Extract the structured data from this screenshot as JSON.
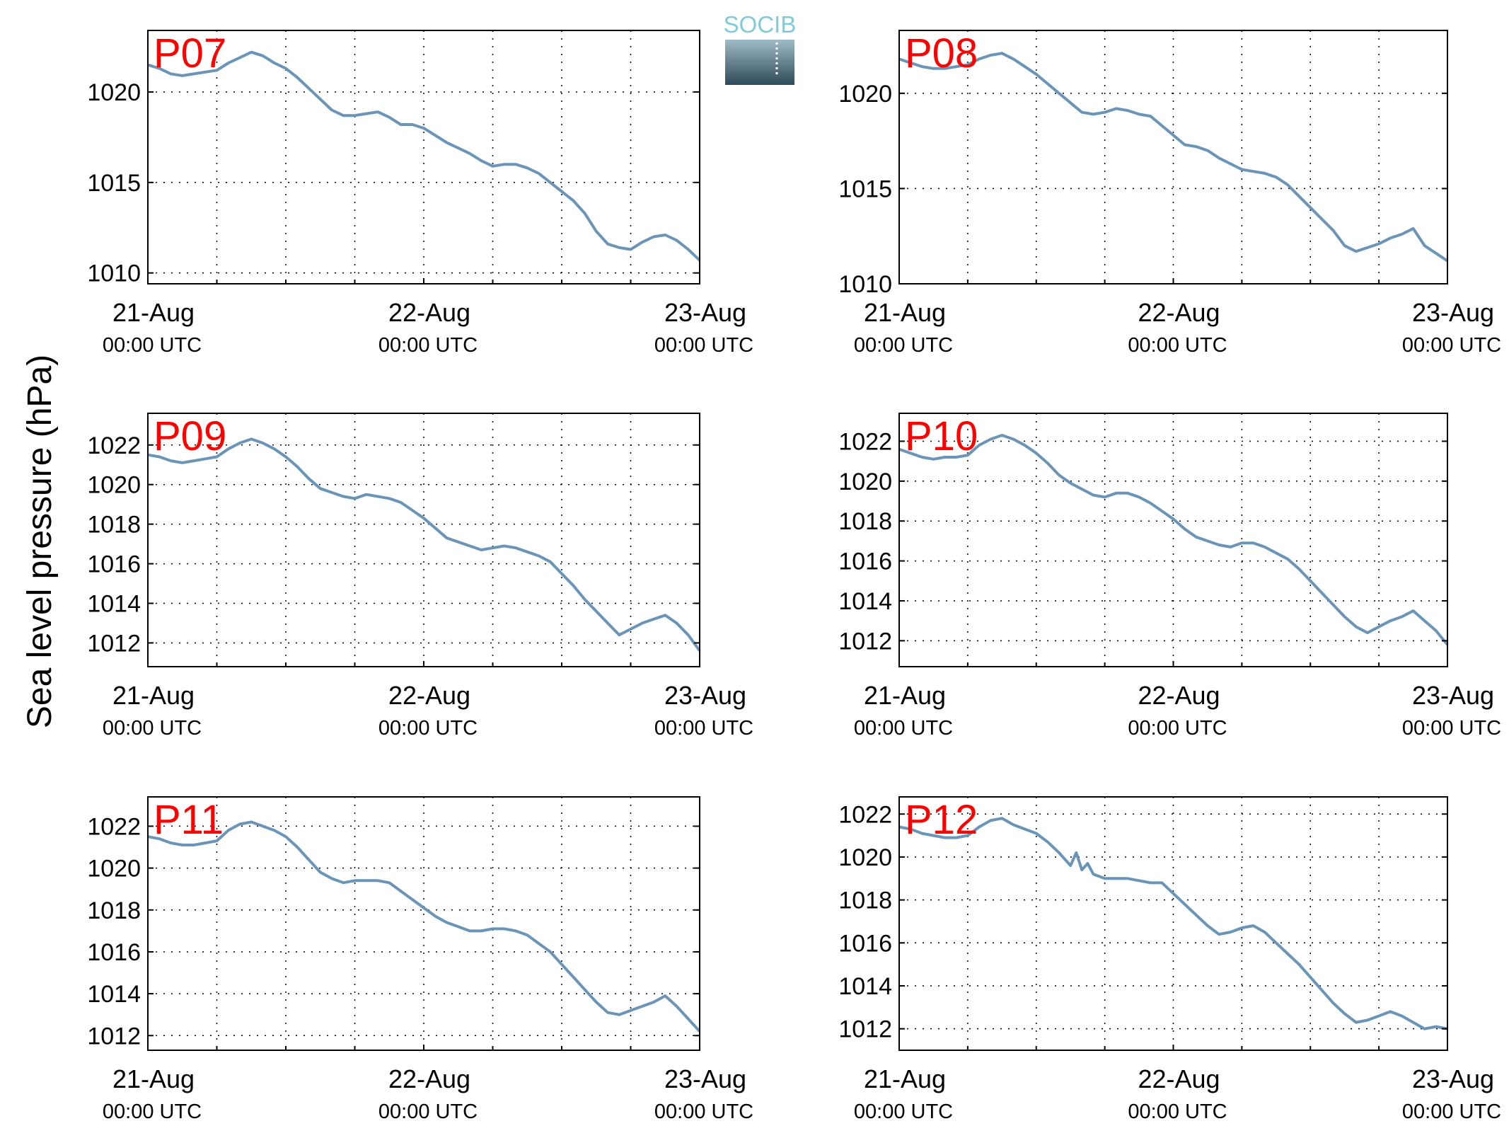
{
  "ylabel": "Sea level pressure (hPa)",
  "logo": {
    "text": "SOCIB"
  },
  "colors": {
    "line": "#6a95b8",
    "panel_label": "#ff0000",
    "logo_text": "#7fcbd9",
    "logo_bg_top": "#7fa2b0",
    "logo_bg_bottom": "#2e4957"
  },
  "chart_data": [
    {
      "type": "line",
      "title": "P07",
      "xlim": [
        0,
        48
      ],
      "xticks": [
        {
          "x": 0,
          "date": "21-Aug",
          "time": "00:00 UTC"
        },
        {
          "x": 24,
          "date": "22-Aug",
          "time": "00:00 UTC"
        },
        {
          "x": 48,
          "date": "23-Aug",
          "time": "00:00 UTC"
        }
      ],
      "xgrid_hours": [
        6,
        12,
        18,
        30,
        36,
        42
      ],
      "ylim": [
        1009.4,
        1023.4
      ],
      "yticks": [
        1010,
        1015,
        1020
      ],
      "series": [
        {
          "x": [
            0,
            1,
            2,
            3,
            4,
            5,
            6,
            7,
            8,
            9,
            10,
            11,
            12,
            13,
            14,
            15,
            16,
            17,
            18,
            19,
            20,
            21,
            22,
            23,
            24,
            25,
            26,
            27,
            28,
            29,
            30,
            31,
            32,
            33,
            34,
            35,
            36,
            37,
            38,
            39,
            40,
            41,
            42,
            43,
            44,
            45,
            46,
            47,
            48
          ],
          "y": [
            1021.5,
            1021.3,
            1021.0,
            1020.9,
            1021.0,
            1021.1,
            1021.2,
            1021.6,
            1021.9,
            1022.2,
            1022.0,
            1021.6,
            1021.3,
            1020.8,
            1020.2,
            1019.6,
            1019.0,
            1018.7,
            1018.7,
            1018.8,
            1018.9,
            1018.6,
            1018.2,
            1018.2,
            1018.0,
            1017.6,
            1017.2,
            1016.9,
            1016.6,
            1016.2,
            1015.9,
            1016.0,
            1016.0,
            1015.8,
            1015.5,
            1015.0,
            1014.5,
            1014.0,
            1013.3,
            1012.3,
            1011.6,
            1011.4,
            1011.3,
            1011.7,
            1012.0,
            1012.1,
            1011.8,
            1011.3,
            1010.7
          ]
        }
      ]
    },
    {
      "type": "line",
      "title": "P08",
      "xlim": [
        0,
        48
      ],
      "xticks": [
        {
          "x": 0,
          "date": "21-Aug",
          "time": "00:00 UTC"
        },
        {
          "x": 24,
          "date": "22-Aug",
          "time": "00:00 UTC"
        },
        {
          "x": 48,
          "date": "23-Aug",
          "time": "00:00 UTC"
        }
      ],
      "xgrid_hours": [
        6,
        12,
        18,
        30,
        36,
        42
      ],
      "ylim": [
        1010,
        1023.3
      ],
      "yticks": [
        1010,
        1015,
        1020
      ],
      "series": [
        {
          "x": [
            0,
            1,
            2,
            3,
            4,
            5,
            6,
            7,
            8,
            9,
            10,
            11,
            12,
            13,
            14,
            15,
            16,
            17,
            18,
            19,
            20,
            21,
            22,
            23,
            24,
            25,
            26,
            27,
            28,
            29,
            30,
            31,
            32,
            33,
            34,
            35,
            36,
            37,
            38,
            39,
            40,
            41,
            42,
            43,
            44,
            45,
            46,
            47,
            48
          ],
          "y": [
            1021.8,
            1021.6,
            1021.4,
            1021.3,
            1021.3,
            1021.4,
            1021.5,
            1021.8,
            1022.0,
            1022.1,
            1021.8,
            1021.4,
            1021.0,
            1020.5,
            1020.0,
            1019.5,
            1019.0,
            1018.9,
            1019.0,
            1019.2,
            1019.1,
            1018.9,
            1018.8,
            1018.3,
            1017.8,
            1017.3,
            1017.2,
            1017.0,
            1016.6,
            1016.3,
            1016.0,
            1015.9,
            1015.8,
            1015.6,
            1015.2,
            1014.6,
            1014.0,
            1013.4,
            1012.8,
            1012.0,
            1011.7,
            1011.9,
            1012.1,
            1012.4,
            1012.6,
            1012.9,
            1012.0,
            1011.6,
            1011.2
          ]
        }
      ]
    },
    {
      "type": "line",
      "title": "P09",
      "xlim": [
        0,
        48
      ],
      "xticks": [
        {
          "x": 0,
          "date": "21-Aug",
          "time": "00:00 UTC"
        },
        {
          "x": 24,
          "date": "22-Aug",
          "time": "00:00 UTC"
        },
        {
          "x": 48,
          "date": "23-Aug",
          "time": "00:00 UTC"
        }
      ],
      "xgrid_hours": [
        6,
        12,
        18,
        30,
        36,
        42
      ],
      "ylim": [
        1010.8,
        1023.6
      ],
      "yticks": [
        1012,
        1014,
        1016,
        1018,
        1020,
        1022
      ],
      "series": [
        {
          "x": [
            0,
            1,
            2,
            3,
            4,
            5,
            6,
            7,
            8,
            9,
            10,
            11,
            12,
            13,
            14,
            15,
            16,
            17,
            18,
            19,
            20,
            21,
            22,
            23,
            24,
            25,
            26,
            27,
            28,
            29,
            30,
            31,
            32,
            33,
            34,
            35,
            36,
            37,
            38,
            39,
            40,
            41,
            42,
            43,
            44,
            45,
            46,
            47,
            48
          ],
          "y": [
            1021.5,
            1021.4,
            1021.2,
            1021.1,
            1021.2,
            1021.3,
            1021.4,
            1021.8,
            1022.1,
            1022.3,
            1022.1,
            1021.8,
            1021.4,
            1020.9,
            1020.3,
            1019.8,
            1019.6,
            1019.4,
            1019.3,
            1019.5,
            1019.4,
            1019.3,
            1019.1,
            1018.7,
            1018.3,
            1017.8,
            1017.3,
            1017.1,
            1016.9,
            1016.7,
            1016.8,
            1016.9,
            1016.8,
            1016.6,
            1016.4,
            1016.1,
            1015.5,
            1014.9,
            1014.2,
            1013.6,
            1013.0,
            1012.4,
            1012.7,
            1013.0,
            1013.2,
            1013.4,
            1013.0,
            1012.4,
            1011.6
          ]
        }
      ]
    },
    {
      "type": "line",
      "title": "P10",
      "xlim": [
        0,
        48
      ],
      "xticks": [
        {
          "x": 0,
          "date": "21-Aug",
          "time": "00:00 UTC"
        },
        {
          "x": 24,
          "date": "22-Aug",
          "time": "00:00 UTC"
        },
        {
          "x": 48,
          "date": "23-Aug",
          "time": "00:00 UTC"
        }
      ],
      "xgrid_hours": [
        6,
        12,
        18,
        30,
        36,
        42
      ],
      "ylim": [
        1010.7,
        1023.4
      ],
      "yticks": [
        1012,
        1014,
        1016,
        1018,
        1020,
        1022
      ],
      "series": [
        {
          "x": [
            0,
            1,
            2,
            3,
            4,
            5,
            6,
            7,
            8,
            9,
            10,
            11,
            12,
            13,
            14,
            15,
            16,
            17,
            18,
            19,
            20,
            21,
            22,
            23,
            24,
            25,
            26,
            27,
            28,
            29,
            30,
            31,
            32,
            33,
            34,
            35,
            36,
            37,
            38,
            39,
            40,
            41,
            42,
            43,
            44,
            45,
            46,
            47,
            48
          ],
          "y": [
            1021.6,
            1021.4,
            1021.2,
            1021.1,
            1021.2,
            1021.2,
            1021.3,
            1021.8,
            1022.1,
            1022.3,
            1022.1,
            1021.8,
            1021.4,
            1020.9,
            1020.3,
            1019.9,
            1019.6,
            1019.3,
            1019.2,
            1019.4,
            1019.4,
            1019.2,
            1018.9,
            1018.5,
            1018.1,
            1017.6,
            1017.2,
            1017.0,
            1016.8,
            1016.7,
            1016.9,
            1016.9,
            1016.7,
            1016.4,
            1016.1,
            1015.6,
            1015.0,
            1014.4,
            1013.8,
            1013.2,
            1012.7,
            1012.4,
            1012.7,
            1013.0,
            1013.2,
            1013.5,
            1013.0,
            1012.5,
            1011.8
          ]
        }
      ]
    },
    {
      "type": "line",
      "title": "P11",
      "xlim": [
        0,
        48
      ],
      "xticks": [
        {
          "x": 0,
          "date": "21-Aug",
          "time": "00:00 UTC"
        },
        {
          "x": 24,
          "date": "22-Aug",
          "time": "00:00 UTC"
        },
        {
          "x": 48,
          "date": "23-Aug",
          "time": "00:00 UTC"
        }
      ],
      "xgrid_hours": [
        6,
        12,
        18,
        30,
        36,
        42
      ],
      "ylim": [
        1011.3,
        1023.4
      ],
      "yticks": [
        1012,
        1014,
        1016,
        1018,
        1020,
        1022
      ],
      "series": [
        {
          "x": [
            0,
            1,
            2,
            3,
            4,
            5,
            6,
            7,
            8,
            9,
            10,
            11,
            12,
            13,
            14,
            15,
            16,
            17,
            18,
            19,
            20,
            21,
            22,
            23,
            24,
            25,
            26,
            27,
            28,
            29,
            30,
            31,
            32,
            33,
            34,
            35,
            36,
            37,
            38,
            39,
            40,
            41,
            42,
            43,
            44,
            45,
            46,
            47,
            48
          ],
          "y": [
            1021.5,
            1021.4,
            1021.2,
            1021.1,
            1021.1,
            1021.2,
            1021.3,
            1021.8,
            1022.1,
            1022.2,
            1022.0,
            1021.8,
            1021.5,
            1021.0,
            1020.4,
            1019.8,
            1019.5,
            1019.3,
            1019.4,
            1019.4,
            1019.4,
            1019.3,
            1018.9,
            1018.5,
            1018.1,
            1017.7,
            1017.4,
            1017.2,
            1017.0,
            1017.0,
            1017.1,
            1017.1,
            1017.0,
            1016.8,
            1016.4,
            1016.0,
            1015.4,
            1014.8,
            1014.2,
            1013.6,
            1013.1,
            1013.0,
            1013.2,
            1013.4,
            1013.6,
            1013.9,
            1013.4,
            1012.8,
            1012.2
          ]
        }
      ]
    },
    {
      "type": "line",
      "title": "P12",
      "xlim": [
        0,
        48
      ],
      "xticks": [
        {
          "x": 0,
          "date": "21-Aug",
          "time": "00:00 UTC"
        },
        {
          "x": 24,
          "date": "22-Aug",
          "time": "00:00 UTC"
        },
        {
          "x": 48,
          "date": "23-Aug",
          "time": "00:00 UTC"
        }
      ],
      "xgrid_hours": [
        6,
        12,
        18,
        30,
        36,
        42
      ],
      "ylim": [
        1011.0,
        1022.8
      ],
      "yticks": [
        1012,
        1014,
        1016,
        1018,
        1020,
        1022
      ],
      "series": [
        {
          "x": [
            0,
            1,
            2,
            3,
            4,
            5,
            6,
            7,
            8,
            9,
            10,
            11,
            12,
            13,
            14,
            15,
            15.5,
            16,
            16.5,
            17,
            18,
            19,
            20,
            21,
            22,
            23,
            24,
            25,
            26,
            27,
            28,
            29,
            30,
            31,
            32,
            33,
            34,
            35,
            36,
            37,
            38,
            39,
            40,
            41,
            42,
            43,
            44,
            45,
            46,
            47,
            48
          ],
          "y": [
            1021.4,
            1021.3,
            1021.1,
            1021.0,
            1020.9,
            1020.9,
            1021.0,
            1021.4,
            1021.7,
            1021.8,
            1021.5,
            1021.3,
            1021.1,
            1020.7,
            1020.2,
            1019.6,
            1020.2,
            1019.4,
            1019.7,
            1019.2,
            1019.0,
            1019.0,
            1019.0,
            1018.9,
            1018.8,
            1018.8,
            1018.3,
            1017.8,
            1017.3,
            1016.8,
            1016.4,
            1016.5,
            1016.7,
            1016.8,
            1016.5,
            1016.0,
            1015.5,
            1015.0,
            1014.4,
            1013.8,
            1013.2,
            1012.7,
            1012.3,
            1012.4,
            1012.6,
            1012.8,
            1012.6,
            1012.3,
            1012.0,
            1012.1,
            1012.0
          ]
        }
      ]
    }
  ]
}
